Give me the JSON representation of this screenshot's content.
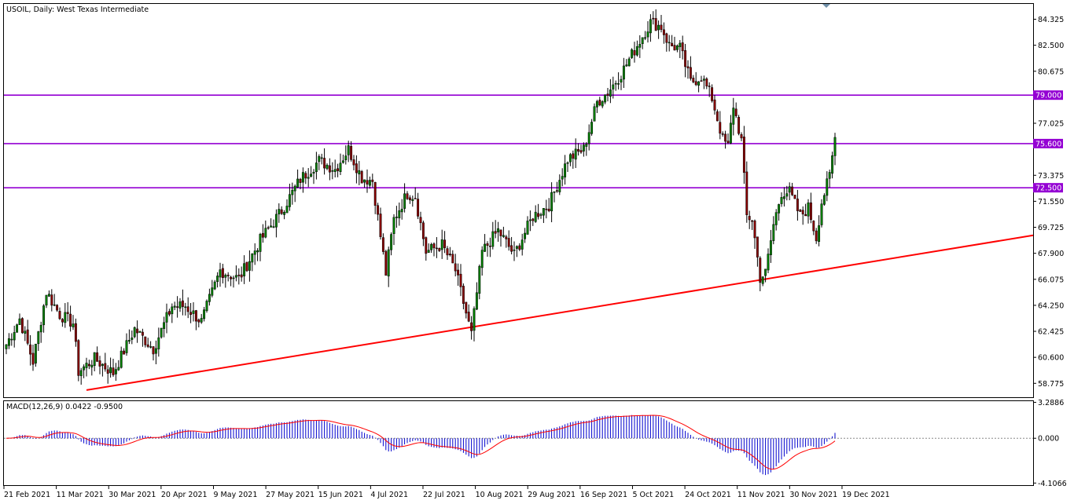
{
  "chart_data": [
    {
      "type": "candlestick",
      "title": "USOIL, Daily:  West Texas Intermediate",
      "ylim": [
        57.8,
        85.4
      ],
      "y_ticks": [
        "84.325",
        "82.500",
        "80.675",
        "79.000",
        "77.025",
        "75.600",
        "73.375",
        "72.500",
        "71.550",
        "69.725",
        "67.900",
        "66.075",
        "64.250",
        "62.425",
        "60.600",
        "58.775"
      ],
      "x_tick_labels": [
        "21 Feb 2021",
        "11 Mar 2021",
        "30 Mar 2021",
        "20 Apr 2021",
        "9 May 2021",
        "27 May 2021",
        "15 Jun 2021",
        "4 Jul 2021",
        "22 Jul 2021",
        "10 Aug 2021",
        "29 Aug 2021",
        "16 Sep 2021",
        "5 Oct 2021",
        "24 Oct 2021",
        "11 Nov 2021",
        "30 Nov 2021",
        "19 Dec 2021"
      ],
      "horizontal_levels": [
        {
          "value": 79.0,
          "label": "79.000",
          "color": "#9400d3"
        },
        {
          "value": 75.6,
          "label": "75.600",
          "color": "#9400d3"
        },
        {
          "value": 72.5,
          "label": "72.500",
          "color": "#9400d3"
        }
      ],
      "trendline": {
        "color": "#ff0000",
        "points": [
          [
            0,
            58.3
          ],
          [
            100,
            67.9
          ]
        ]
      },
      "anchors_close": [
        [
          0,
          61.5
        ],
        [
          5,
          63.3
        ],
        [
          10,
          60.3
        ],
        [
          15,
          65.2
        ],
        [
          20,
          63.6
        ],
        [
          25,
          63.0
        ],
        [
          27,
          59.6
        ],
        [
          33,
          60.5
        ],
        [
          40,
          59.5
        ],
        [
          48,
          62.6
        ],
        [
          55,
          61.2
        ],
        [
          62,
          64.2
        ],
        [
          67,
          64.2
        ],
        [
          73,
          63.1
        ],
        [
          80,
          66.7
        ],
        [
          87,
          66.1
        ],
        [
          95,
          68.8
        ],
        [
          103,
          70.9
        ],
        [
          110,
          73.1
        ],
        [
          117,
          74.4
        ],
        [
          123,
          73.8
        ],
        [
          128,
          75.2
        ],
        [
          133,
          73.2
        ],
        [
          137,
          73.0
        ],
        [
          142,
          66.5
        ],
        [
          145,
          70.3
        ],
        [
          150,
          72.1
        ],
        [
          153,
          71.9
        ],
        [
          157,
          68.0
        ],
        [
          163,
          68.5
        ],
        [
          168,
          66.7
        ],
        [
          174,
          62.2
        ],
        [
          178,
          68.0
        ],
        [
          184,
          69.5
        ],
        [
          190,
          67.8
        ],
        [
          197,
          70.5
        ],
        [
          203,
          71.3
        ],
        [
          210,
          74.5
        ],
        [
          216,
          75.2
        ],
        [
          221,
          78.5
        ],
        [
          225,
          79.2
        ],
        [
          230,
          80.5
        ],
        [
          236,
          82.5
        ],
        [
          241,
          84.1
        ],
        [
          245,
          83.8
        ],
        [
          248,
          82.5
        ],
        [
          252,
          82.3
        ],
        [
          256,
          79.9
        ],
        [
          260,
          80.3
        ],
        [
          264,
          78.8
        ],
        [
          268,
          75.9
        ],
        [
          270,
          75.4
        ],
        [
          272,
          78.3
        ],
        [
          275,
          75.8
        ],
        [
          277,
          70.5
        ],
        [
          279,
          70.3
        ],
        [
          282,
          66.2
        ],
        [
          284,
          66.5
        ],
        [
          287,
          69.9
        ],
        [
          290,
          72.2
        ],
        [
          293,
          72.2
        ],
        [
          297,
          70.5
        ],
        [
          300,
          71.1
        ],
        [
          303,
          69.0
        ],
        [
          305,
          71.5
        ],
        [
          308,
          73.3
        ],
        [
          310,
          76.0
        ]
      ],
      "open_label": "",
      "notes": ""
    },
    {
      "type": "macd",
      "title": "MACD(12,26,9) 0.0422 -0.9500",
      "ylim": [
        -4.3,
        3.4
      ],
      "y_ticks": [
        "3.2886",
        "0.000",
        "-4.1066"
      ],
      "hist_color": "#0000cd",
      "signal_color": "#ff0000"
    }
  ]
}
